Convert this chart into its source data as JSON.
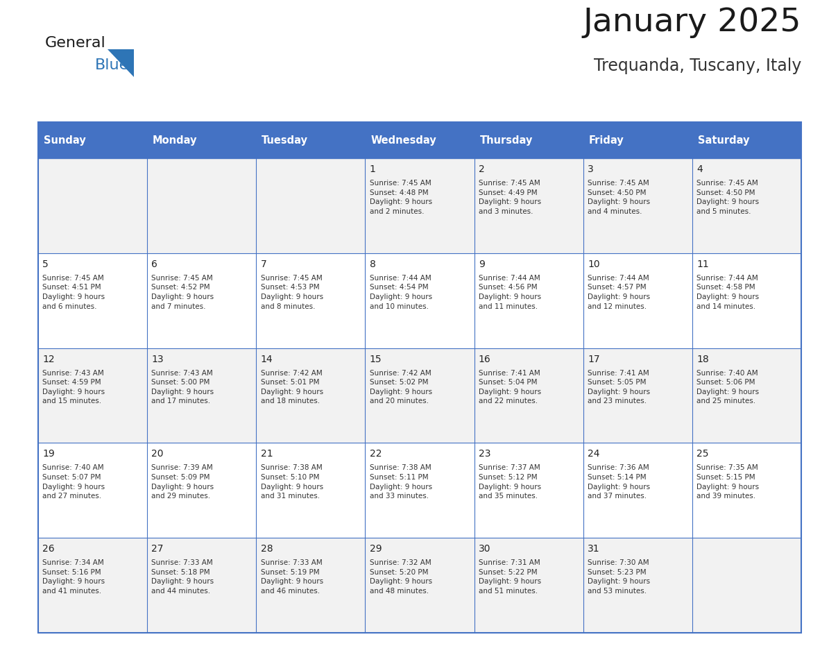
{
  "title": "January 2025",
  "subtitle": "Trequanda, Tuscany, Italy",
  "days_of_week": [
    "Sunday",
    "Monday",
    "Tuesday",
    "Wednesday",
    "Thursday",
    "Friday",
    "Saturday"
  ],
  "header_bg": "#4472C4",
  "header_text": "#FFFFFF",
  "row_bg": [
    "#F2F2F2",
    "#FFFFFF",
    "#F2F2F2",
    "#FFFFFF",
    "#F2F2F2"
  ],
  "cell_text": "#333333",
  "day_num_color": "#222222",
  "grid_color": "#4472C4",
  "title_color": "#1a1a1a",
  "subtitle_color": "#333333",
  "logo_general_color": "#1a1a1a",
  "logo_blue_color": "#2E75B6",
  "calendar_data": [
    [
      null,
      null,
      null,
      {
        "day": 1,
        "sunrise": "7:45 AM",
        "sunset": "4:48 PM",
        "daylight": "9 hours and 2 minutes."
      },
      {
        "day": 2,
        "sunrise": "7:45 AM",
        "sunset": "4:49 PM",
        "daylight": "9 hours and 3 minutes."
      },
      {
        "day": 3,
        "sunrise": "7:45 AM",
        "sunset": "4:50 PM",
        "daylight": "9 hours and 4 minutes."
      },
      {
        "day": 4,
        "sunrise": "7:45 AM",
        "sunset": "4:50 PM",
        "daylight": "9 hours and 5 minutes."
      }
    ],
    [
      {
        "day": 5,
        "sunrise": "7:45 AM",
        "sunset": "4:51 PM",
        "daylight": "9 hours and 6 minutes."
      },
      {
        "day": 6,
        "sunrise": "7:45 AM",
        "sunset": "4:52 PM",
        "daylight": "9 hours and 7 minutes."
      },
      {
        "day": 7,
        "sunrise": "7:45 AM",
        "sunset": "4:53 PM",
        "daylight": "9 hours and 8 minutes."
      },
      {
        "day": 8,
        "sunrise": "7:44 AM",
        "sunset": "4:54 PM",
        "daylight": "9 hours and 10 minutes."
      },
      {
        "day": 9,
        "sunrise": "7:44 AM",
        "sunset": "4:56 PM",
        "daylight": "9 hours and 11 minutes."
      },
      {
        "day": 10,
        "sunrise": "7:44 AM",
        "sunset": "4:57 PM",
        "daylight": "9 hours and 12 minutes."
      },
      {
        "day": 11,
        "sunrise": "7:44 AM",
        "sunset": "4:58 PM",
        "daylight": "9 hours and 14 minutes."
      }
    ],
    [
      {
        "day": 12,
        "sunrise": "7:43 AM",
        "sunset": "4:59 PM",
        "daylight": "9 hours and 15 minutes."
      },
      {
        "day": 13,
        "sunrise": "7:43 AM",
        "sunset": "5:00 PM",
        "daylight": "9 hours and 17 minutes."
      },
      {
        "day": 14,
        "sunrise": "7:42 AM",
        "sunset": "5:01 PM",
        "daylight": "9 hours and 18 minutes."
      },
      {
        "day": 15,
        "sunrise": "7:42 AM",
        "sunset": "5:02 PM",
        "daylight": "9 hours and 20 minutes."
      },
      {
        "day": 16,
        "sunrise": "7:41 AM",
        "sunset": "5:04 PM",
        "daylight": "9 hours and 22 minutes."
      },
      {
        "day": 17,
        "sunrise": "7:41 AM",
        "sunset": "5:05 PM",
        "daylight": "9 hours and 23 minutes."
      },
      {
        "day": 18,
        "sunrise": "7:40 AM",
        "sunset": "5:06 PM",
        "daylight": "9 hours and 25 minutes."
      }
    ],
    [
      {
        "day": 19,
        "sunrise": "7:40 AM",
        "sunset": "5:07 PM",
        "daylight": "9 hours and 27 minutes."
      },
      {
        "day": 20,
        "sunrise": "7:39 AM",
        "sunset": "5:09 PM",
        "daylight": "9 hours and 29 minutes."
      },
      {
        "day": 21,
        "sunrise": "7:38 AM",
        "sunset": "5:10 PM",
        "daylight": "9 hours and 31 minutes."
      },
      {
        "day": 22,
        "sunrise": "7:38 AM",
        "sunset": "5:11 PM",
        "daylight": "9 hours and 33 minutes."
      },
      {
        "day": 23,
        "sunrise": "7:37 AM",
        "sunset": "5:12 PM",
        "daylight": "9 hours and 35 minutes."
      },
      {
        "day": 24,
        "sunrise": "7:36 AM",
        "sunset": "5:14 PM",
        "daylight": "9 hours and 37 minutes."
      },
      {
        "day": 25,
        "sunrise": "7:35 AM",
        "sunset": "5:15 PM",
        "daylight": "9 hours and 39 minutes."
      }
    ],
    [
      {
        "day": 26,
        "sunrise": "7:34 AM",
        "sunset": "5:16 PM",
        "daylight": "9 hours and 41 minutes."
      },
      {
        "day": 27,
        "sunrise": "7:33 AM",
        "sunset": "5:18 PM",
        "daylight": "9 hours and 44 minutes."
      },
      {
        "day": 28,
        "sunrise": "7:33 AM",
        "sunset": "5:19 PM",
        "daylight": "9 hours and 46 minutes."
      },
      {
        "day": 29,
        "sunrise": "7:32 AM",
        "sunset": "5:20 PM",
        "daylight": "9 hours and 48 minutes."
      },
      {
        "day": 30,
        "sunrise": "7:31 AM",
        "sunset": "5:22 PM",
        "daylight": "9 hours and 51 minutes."
      },
      {
        "day": 31,
        "sunrise": "7:30 AM",
        "sunset": "5:23 PM",
        "daylight": "9 hours and 53 minutes."
      },
      null
    ]
  ]
}
